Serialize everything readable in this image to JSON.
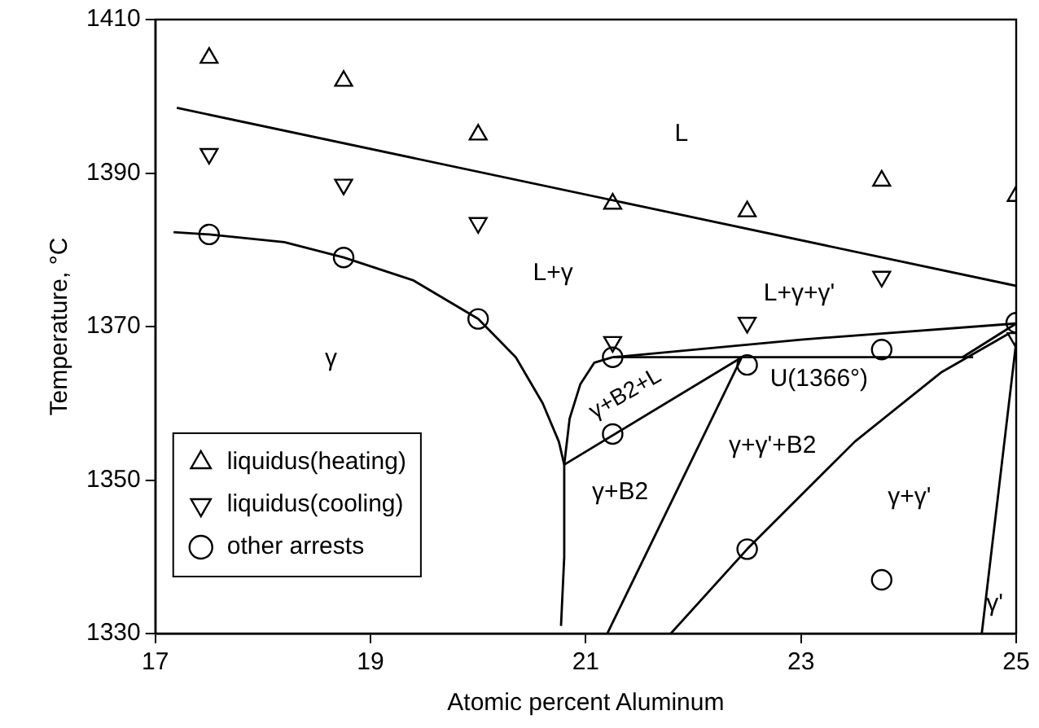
{
  "chart_data": {
    "type": "scatter",
    "xlabel": "Atomic percent Aluminum",
    "ylabel": "Temperature, °C",
    "xlim": [
      17,
      25
    ],
    "xticks": [
      17,
      19,
      21,
      23,
      25
    ],
    "ylim": [
      1330,
      1410
    ],
    "yticks": [
      1330,
      1350,
      1370,
      1390,
      1410
    ],
    "grid": false,
    "legend": "bottom left",
    "line_style": "solid",
    "series": [
      {
        "name": "liquidus(heating)",
        "marker": "triangle",
        "color": "#000000",
        "x": [
          17.5,
          18.75,
          20,
          21.25,
          22.5,
          23.75,
          25
        ],
        "values": [
          1405,
          1402,
          1395,
          1386,
          1385,
          1389,
          1387
        ]
      },
      {
        "name": "liquidus(cooling)",
        "marker": "triangle-down",
        "color": "#000000",
        "x": [
          17.5,
          18.75,
          20,
          21.25,
          22.5,
          23.75,
          25
        ],
        "values": [
          1392.5,
          1388.5,
          1383.5,
          1368,
          1370.5,
          1376.5,
          1368.5
        ]
      },
      {
        "name": "other arrests",
        "marker": "circle",
        "color": "#000000",
        "x": [
          17.5,
          18.75,
          20,
          21.25,
          22.5,
          23.75,
          25,
          21.25,
          22.5,
          23.75
        ],
        "values": [
          1382,
          1379,
          1371,
          1366,
          1365,
          1367,
          1370.5,
          1356,
          1341,
          1337
        ]
      },
      {
        "type": "line",
        "marker": "none",
        "color": "#000000",
        "x": [
          17.2,
          25
        ],
        "values": [
          1398.5,
          1375.3
        ]
      },
      {
        "type": "line",
        "marker": "none",
        "color": "#000000",
        "x": [
          17.17,
          17.5,
          18.2,
          18.75,
          19.4,
          20,
          20.35,
          20.6,
          20.75,
          20.8,
          20.8,
          20.77
        ],
        "values": [
          1382.3,
          1382,
          1381,
          1379,
          1376,
          1371,
          1366,
          1360,
          1355,
          1352,
          1340,
          1331
        ]
      },
      {
        "type": "line",
        "marker": "none",
        "color": "#000000",
        "x": [
          20.8,
          20.85,
          20.95,
          21.08,
          21.25
        ],
        "values": [
          1352,
          1358,
          1362.5,
          1365.3,
          1366
        ]
      },
      {
        "type": "line",
        "marker": "none",
        "color": "#000000",
        "x": [
          20.8,
          22.45
        ],
        "values": [
          1352,
          1366
        ]
      },
      {
        "type": "line",
        "marker": "none",
        "color": "#000000",
        "x": [
          21.25,
          24.6
        ],
        "values": [
          1366,
          1366
        ]
      },
      {
        "type": "line",
        "marker": "none",
        "color": "#000000",
        "x": [
          21.25,
          23,
          25
        ],
        "values": [
          1366,
          1368.3,
          1370.4
        ]
      },
      {
        "type": "line",
        "marker": "none",
        "color": "#000000",
        "x": [
          21.2,
          22.45
        ],
        "values": [
          1330,
          1366
        ]
      },
      {
        "type": "line",
        "marker": "none",
        "color": "#000000",
        "x": [
          21.79,
          22.5,
          23.5,
          24.3,
          24.92
        ],
        "values": [
          1330,
          1341,
          1355,
          1364,
          1369
        ]
      },
      {
        "type": "line",
        "marker": "none",
        "color": "#000000",
        "x": [
          24.68,
          25
        ],
        "values": [
          1330,
          1368
        ]
      },
      {
        "type": "line",
        "marker": "none",
        "color": "#000000",
        "x": [
          24.5,
          25
        ],
        "values": [
          1366,
          1370.4
        ]
      }
    ],
    "annotations": [
      "L",
      "L+γ",
      "γ",
      "L+γ+γ'",
      "U(1366°)",
      "γ+B2+L",
      "γ+B2",
      "γ+γ'+B2",
      "γ+γ'",
      "γ'"
    ]
  }
}
